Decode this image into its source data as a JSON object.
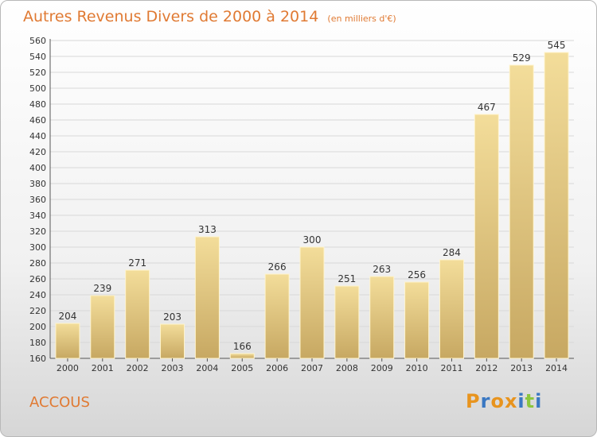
{
  "header": {
    "title": "Autres Revenus Divers de 2000 à 2014",
    "unit": "(en milliers d'€)"
  },
  "footer": {
    "commune": "ACCOUS",
    "logo_text": "Proxiti",
    "logo_letter_colors": [
      "#e8941e",
      "#3a78c2",
      "#e8941e",
      "#e8941e",
      "#3a78c2",
      "#8cc63e",
      "#3a78c2"
    ]
  },
  "colors": {
    "accent": "#e07a33",
    "bar_light": "#f3dd9a",
    "bar_dark": "#c7a862",
    "grid": "#d8d8d8"
  },
  "chart_data": {
    "type": "bar",
    "title": "Autres Revenus Divers de 2000 à 2014",
    "categories": [
      "2000",
      "2001",
      "2002",
      "2003",
      "2004",
      "2005",
      "2006",
      "2007",
      "2008",
      "2009",
      "2010",
      "2011",
      "2012",
      "2013",
      "2014"
    ],
    "values": [
      204,
      239,
      271,
      203,
      313,
      166,
      266,
      300,
      251,
      263,
      256,
      284,
      467,
      529,
      545
    ],
    "ylim": [
      160,
      560
    ],
    "ytick_step": 20,
    "grid": true,
    "xlabel": "",
    "ylabel": ""
  }
}
